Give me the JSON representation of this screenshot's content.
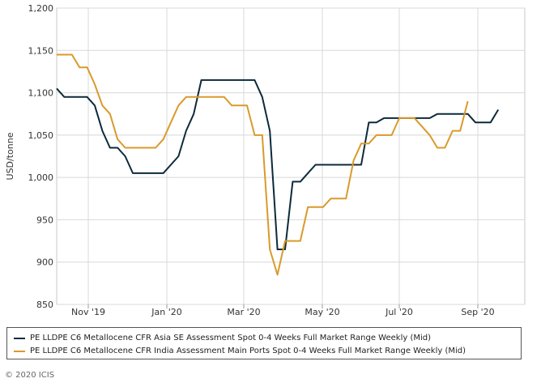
{
  "chart_data": {
    "type": "line",
    "ylabel": "USD/tonne",
    "xlabel": "",
    "ylim": [
      850,
      1200
    ],
    "yticks": [
      "850",
      "900",
      "950",
      "1,000",
      "1,050",
      "1,100",
      "1,150",
      "1,200"
    ],
    "xticks": [
      "Nov '19",
      "Jan '20",
      "Mar '20",
      "May '20",
      "Jul '20",
      "Sep '20"
    ],
    "grid": "horizontal and vertical",
    "legend_position": "bottom",
    "series": [
      {
        "name": "PE LLDPE C6 Metallocene CFR Asia SE Assessment Spot 0-4 Weeks Full Market Range Weekly (Mid)",
        "color": "#0d2a3a",
        "values": [
          1105,
          1095,
          1095,
          1095,
          1095,
          1085,
          1055,
          1035,
          1035,
          1025,
          1005,
          1005,
          1005,
          1005,
          1005,
          1015,
          1025,
          1055,
          1075,
          1115,
          1115,
          1115,
          1115,
          1115,
          1115,
          1115,
          1115,
          1095,
          1055,
          915,
          915,
          995,
          995,
          1005,
          1015,
          1015,
          1015,
          1015,
          1015,
          1015,
          1015,
          1065,
          1065,
          1070,
          1070,
          1070,
          1070,
          1070,
          1070,
          1070,
          1075,
          1075,
          1075,
          1075,
          1075,
          1065,
          1065,
          1065,
          1080
        ]
      },
      {
        "name": "PE LLDPE C6 Metallocene CFR India Assessment Main Ports Spot 0-4 Weeks Full Market Range Weekly (Mid)",
        "color": "#d99a2b",
        "values": [
          1145,
          1145,
          1145,
          1130,
          1130,
          1110,
          1085,
          1075,
          1045,
          1035,
          1035,
          1035,
          1035,
          1035,
          1045,
          1065,
          1085,
          1095,
          1095,
          1095,
          1095,
          1095,
          1095,
          1085,
          1085,
          1085,
          1050,
          1050,
          915,
          885,
          925,
          925,
          925,
          965,
          965,
          965,
          975,
          975,
          975,
          1020,
          1040,
          1040,
          1050,
          1050,
          1050,
          1070,
          1070,
          1070,
          1060,
          1050,
          1035,
          1035,
          1055,
          1055,
          1090
        ]
      }
    ]
  },
  "copyright": "© 2020 ICIS"
}
